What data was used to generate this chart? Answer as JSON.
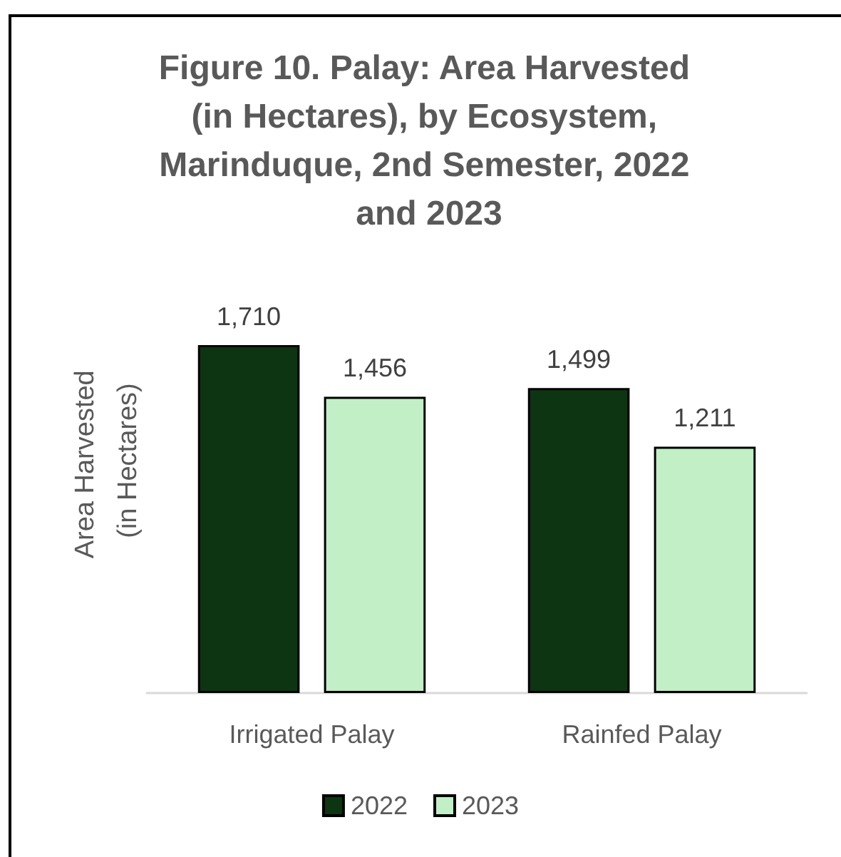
{
  "chart_data": {
    "type": "bar",
    "title": "Figure 10. Palay: Area Harvested (in Hectares), by Ecosystem, Marinduque, 2nd Semester, 2022 and 2023",
    "ylabel": "Area Harvested (in Hectares)",
    "categories": [
      "Irrigated Palay",
      "Rainfed Palay"
    ],
    "series": [
      {
        "name": "2022",
        "color": "#0d3512",
        "values": [
          1710,
          1499
        ],
        "value_labels": [
          "1,710",
          "1,499"
        ]
      },
      {
        "name": "2023",
        "color": "#c2efc6",
        "values": [
          1456,
          1211
        ],
        "value_labels": [
          "1,456",
          "1,211"
        ]
      }
    ],
    "tick_labels": "x",
    "legend": "bottom"
  }
}
